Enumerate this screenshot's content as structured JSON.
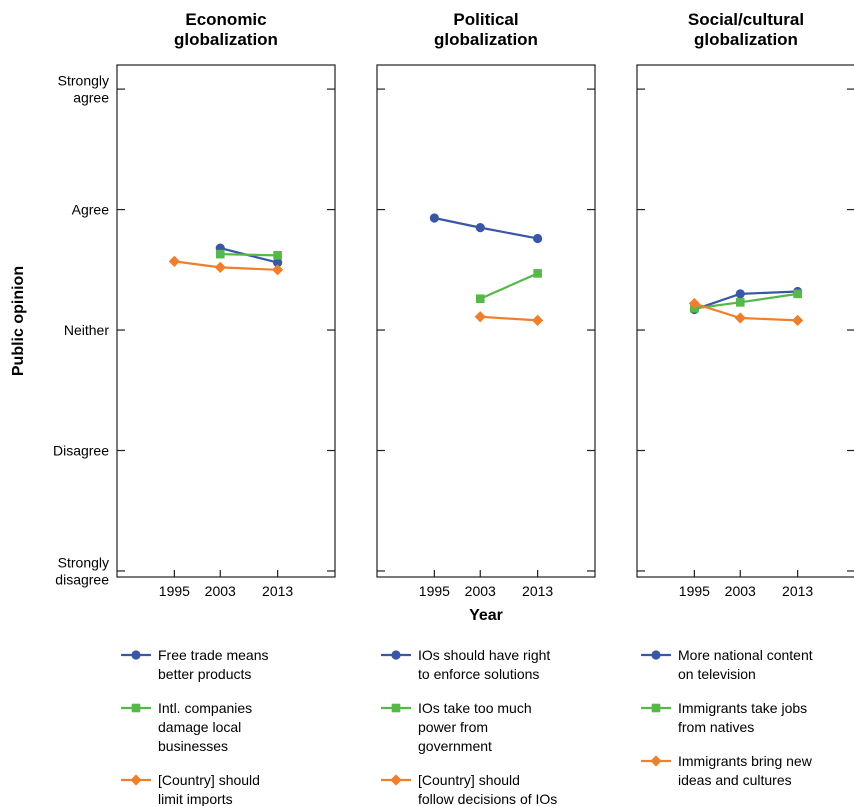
{
  "chart_data": [
    {
      "type": "line",
      "title": "Economic globalization",
      "title_lines": [
        "Economic",
        "globalization"
      ],
      "x": [
        1995,
        2003,
        2013
      ],
      "series": [
        {
          "name": "Free trade means better products",
          "legend_lines": [
            "Free trade means",
            "better products"
          ],
          "color": "#3a57a6",
          "marker": "circle",
          "values": [
            null,
            3.68,
            3.56
          ]
        },
        {
          "name": "Intl. companies damage local businesses",
          "legend_lines": [
            "Intl. companies",
            "damage local",
            "businesses"
          ],
          "color": "#55b848",
          "marker": "square",
          "values": [
            null,
            3.63,
            3.62
          ]
        },
        {
          "name": "[Country] should limit imports",
          "legend_lines": [
            "[Country] should",
            "limit imports"
          ],
          "color": "#f07f2c",
          "marker": "diamond",
          "values": [
            3.57,
            3.52,
            3.5
          ]
        }
      ]
    },
    {
      "type": "line",
      "title": "Political globalization",
      "title_lines": [
        "Political",
        "globalization"
      ],
      "x": [
        1995,
        2003,
        2013
      ],
      "series": [
        {
          "name": "IOs should have right to enforce solutions",
          "legend_lines": [
            "IOs should have right",
            "to enforce solutions"
          ],
          "color": "#3a57a6",
          "marker": "circle",
          "values": [
            3.93,
            3.85,
            3.76
          ]
        },
        {
          "name": "IOs take too much power from government",
          "legend_lines": [
            "IOs take too much",
            "power from",
            "government"
          ],
          "color": "#55b848",
          "marker": "square",
          "values": [
            null,
            3.26,
            3.47
          ]
        },
        {
          "name": "[Country] should follow decisions of IOs",
          "legend_lines": [
            "[Country] should",
            "follow decisions of IOs"
          ],
          "color": "#f07f2c",
          "marker": "diamond",
          "values": [
            null,
            3.11,
            3.08
          ]
        }
      ]
    },
    {
      "type": "line",
      "title": "Social/cultural globalization",
      "title_lines": [
        "Social/cultural",
        "globalization"
      ],
      "x": [
        1995,
        2003,
        2013
      ],
      "series": [
        {
          "name": "More national content on television",
          "legend_lines": [
            "More national content",
            "on television"
          ],
          "color": "#3a57a6",
          "marker": "circle",
          "values": [
            3.17,
            3.3,
            3.32
          ]
        },
        {
          "name": "Immigrants take jobs from natives",
          "legend_lines": [
            "Immigrants take jobs",
            "from natives"
          ],
          "color": "#55b848",
          "marker": "square",
          "values": [
            3.18,
            3.23,
            3.3
          ]
        },
        {
          "name": "Immigrants bring new ideas and cultures",
          "legend_lines": [
            "Immigrants bring new",
            "ideas and cultures"
          ],
          "color": "#f07f2c",
          "marker": "diamond",
          "values": [
            3.22,
            3.1,
            3.08
          ]
        }
      ]
    }
  ],
  "axes": {
    "xlabel": "Year",
    "ylabel": "Public opinion",
    "xlim": [
      1985,
      2023
    ],
    "ylim": [
      0.95,
      5.2
    ],
    "x_ticks": [
      1995,
      2003,
      2013
    ],
    "y_ticks": [
      {
        "value": 1,
        "lines": [
          "Strongly",
          "disagree"
        ]
      },
      {
        "value": 2,
        "lines": [
          "Disagree"
        ]
      },
      {
        "value": 3,
        "lines": [
          "Neither"
        ]
      },
      {
        "value": 4,
        "lines": [
          "Agree"
        ]
      },
      {
        "value": 5,
        "lines": [
          "Strongly",
          "agree"
        ]
      }
    ],
    "grid": false
  }
}
